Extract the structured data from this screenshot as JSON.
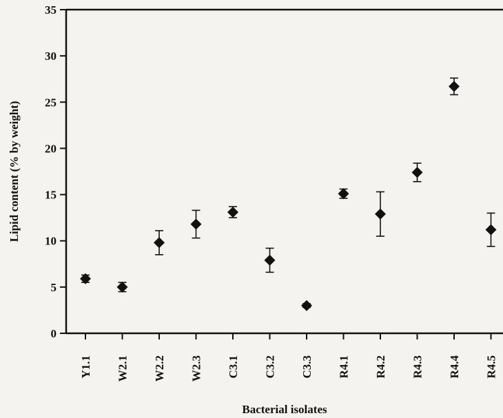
{
  "chart_data": {
    "type": "scatter",
    "title": "",
    "xlabel": "Bacterial isolates",
    "ylabel": "Lipid content  (% by weight)",
    "ylim": [
      0,
      35
    ],
    "yticks": [
      "0",
      "5",
      "10",
      "15",
      "20",
      "25",
      "30",
      "35"
    ],
    "categories": [
      "Y1.1",
      "W2.1",
      "W2.2",
      "W2.3",
      "C3.1",
      "C3.2",
      "C3.3",
      "R4.1",
      "R4.2",
      "R4.3",
      "R4.4",
      "R4.5"
    ],
    "series": [
      {
        "values": [
          5.9,
          5.0,
          9.8,
          11.8,
          13.1,
          7.9,
          3.0,
          15.1,
          12.9,
          17.4,
          26.7,
          11.2
        ],
        "error": [
          0.4,
          0.5,
          1.3,
          1.5,
          0.6,
          1.3,
          0.2,
          0.5,
          2.4,
          1.0,
          0.9,
          1.8
        ],
        "marker": "diamond",
        "color": "#111111"
      }
    ],
    "grid": false,
    "legend": "none"
  }
}
